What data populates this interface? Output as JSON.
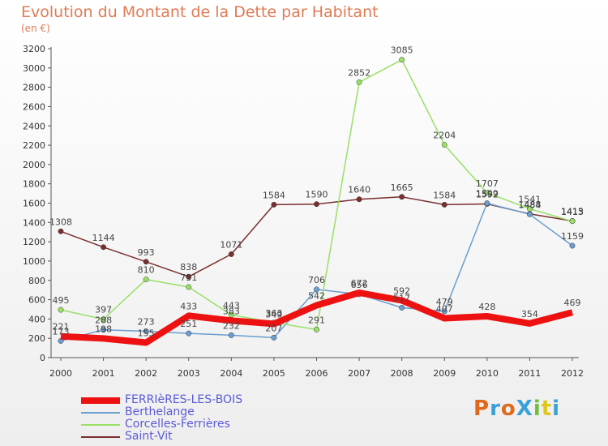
{
  "title": "Evolution du Montant de la Dette par Habitant",
  "subtitle": "(en €)",
  "logo": {
    "text": "ProXiti",
    "colors": [
      "#e0691c",
      "#39a0d8",
      "#e0691c",
      "#39a0d8",
      "#6fbf3a",
      "#e0c61c",
      "#39a0d8"
    ]
  },
  "colors": {
    "title": "#e07b54",
    "legend_text": "#5b5bd6"
  },
  "chart_data": {
    "type": "line",
    "title": "Evolution du Montant de la Dette par Habitant",
    "subtitle": "(en €)",
    "x": [
      "2000",
      "2001",
      "2002",
      "2003",
      "2004",
      "2005",
      "2006",
      "2007",
      "2008",
      "2009",
      "2010",
      "2011",
      "2012"
    ],
    "ylim": [
      0,
      3200
    ],
    "yticks": [
      0,
      200,
      400,
      600,
      800,
      1000,
      1200,
      1400,
      1600,
      1800,
      2000,
      2200,
      2400,
      2600,
      2800,
      3000,
      3200
    ],
    "grid": false,
    "legend_position": "bottom-left",
    "series": [
      {
        "name": "FERRIèRES-LES-BOIS",
        "color": "#ee1111",
        "width": 8,
        "values": [
          221,
          198,
          155,
          433,
          383,
          349,
          542,
          672,
          592,
          407,
          428,
          354,
          469
        ],
        "labels": [
          "221",
          "198",
          "155",
          "433",
          "383",
          "349",
          "542",
          "672",
          "592",
          "407",
          "428",
          "354",
          "469"
        ]
      },
      {
        "name": "Berthelange",
        "color": "#6a9ed0",
        "width": 1.5,
        "values": [
          173,
          288,
          273,
          251,
          232,
          207,
          706,
          656,
          517,
          479,
          1599,
          1484,
          1159
        ],
        "labels": [
          "173",
          "288",
          "273",
          "251",
          "232",
          "207",
          "706",
          "656",
          "517",
          "479",
          "1599",
          "1484",
          "1159"
        ]
      },
      {
        "name": "Corcelles-Ferrières",
        "color": "#99e066",
        "width": 1.5,
        "values": [
          495,
          397,
          810,
          731,
          443,
          363,
          291,
          2852,
          3085,
          2204,
          1707,
          1541,
          1413
        ],
        "labels": [
          "495",
          "397",
          "810",
          "731",
          "443",
          "363",
          "291",
          "2852",
          "3085",
          "2204",
          "1707",
          "1541",
          "1413"
        ]
      },
      {
        "name": "Saint-Vit",
        "color": "#7a2f2f",
        "width": 1.5,
        "values": [
          1308,
          1144,
          993,
          838,
          1071,
          1584,
          1590,
          1640,
          1665,
          1584,
          1592,
          1488,
          1415
        ],
        "labels": [
          "1308",
          "1144",
          "993",
          "838",
          "1071",
          "1584",
          "1590",
          "1640",
          "1665",
          "1584",
          "1592",
          "1488",
          "1415"
        ]
      }
    ]
  }
}
